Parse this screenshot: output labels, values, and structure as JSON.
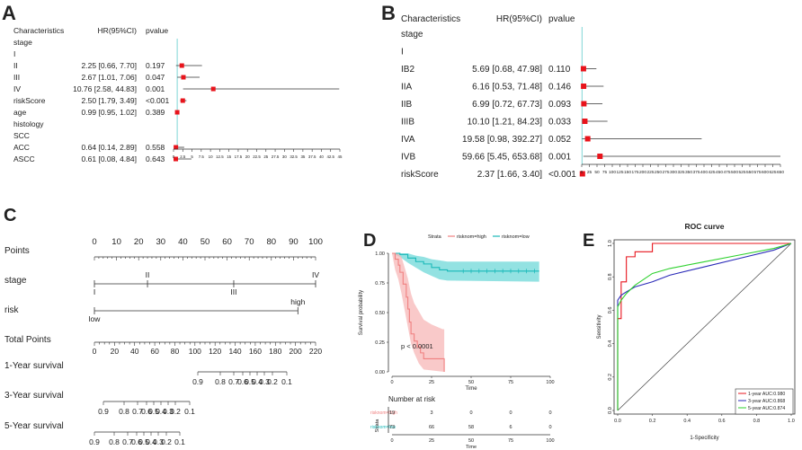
{
  "colors": {
    "marker": "#e8141c",
    "ci": "#333333",
    "refline": "#7fd6d6",
    "high": "#f08080",
    "high_fill": "#f7b7b7",
    "low": "#19b8b8",
    "low_fill": "#6fd8d8",
    "roc1": "#e8141c",
    "roc3": "#2a2ab8",
    "roc5": "#2ed12e"
  },
  "panels": {
    "A": "A",
    "B": "B",
    "C": "C",
    "D": "D",
    "E": "E"
  },
  "headers": {
    "char": "Characteristics",
    "hr": "HR(95%CI)",
    "p": "pvalue"
  },
  "forest_a": {
    "rows": [
      {
        "label": "stage",
        "hr_text": "",
        "p": "",
        "hr": null,
        "lo": null,
        "hi": null
      },
      {
        "label": "I",
        "hr_text": "",
        "p": "",
        "hr": null,
        "lo": null,
        "hi": null
      },
      {
        "label": "II",
        "hr_text": "2.25 [0.66, 7.70]",
        "p": "0.197",
        "hr": 2.25,
        "lo": 0.66,
        "hi": 7.7
      },
      {
        "label": "III",
        "hr_text": "2.67 [1.01, 7.06]",
        "p": "0.047",
        "hr": 2.67,
        "lo": 1.01,
        "hi": 7.06
      },
      {
        "label": "IV",
        "hr_text": "10.76 [2.58, 44.83]",
        "p": "0.001",
        "hr": 10.76,
        "lo": 2.58,
        "hi": 44.83
      },
      {
        "label": "riskScore",
        "hr_text": "2.50 [1.79, 3.49]",
        "p": "<0.001",
        "hr": 2.5,
        "lo": 1.79,
        "hi": 3.49
      },
      {
        "label": "age",
        "hr_text": "0.99 [0.95, 1.02]",
        "p": "0.389",
        "hr": 0.99,
        "lo": 0.95,
        "hi": 1.02
      },
      {
        "label": "histology",
        "hr_text": "",
        "p": "",
        "hr": null,
        "lo": null,
        "hi": null
      },
      {
        "label": "SCC",
        "hr_text": "",
        "p": "",
        "hr": null,
        "lo": null,
        "hi": null
      },
      {
        "label": "ACC",
        "hr_text": "0.64 [0.14, 2.89]",
        "p": "0.558",
        "hr": 0.64,
        "lo": 0.14,
        "hi": 2.89
      },
      {
        "label": "ASCC",
        "hr_text": "0.61 [0.08, 4.84]",
        "p": "0.643",
        "hr": 0.61,
        "lo": 0.08,
        "hi": 4.84
      }
    ],
    "ticks": [
      "0",
      "2.5",
      "5",
      "7.5",
      "10",
      "12.5",
      "15",
      "17.5",
      "20",
      "22.5",
      "25",
      "27.5",
      "30",
      "32.5",
      "35",
      "37.5",
      "40",
      "42.5",
      "45"
    ],
    "xmax": 45
  },
  "forest_b": {
    "rows": [
      {
        "label": "stage",
        "hr_text": "",
        "p": "",
        "hr": null,
        "lo": null,
        "hi": null
      },
      {
        "label": "I",
        "hr_text": "",
        "p": "",
        "hr": null,
        "lo": null,
        "hi": null
      },
      {
        "label": "IB2",
        "hr_text": "5.69 [0.68, 47.98]",
        "p": "0.110",
        "hr": 5.69,
        "lo": 0.68,
        "hi": 47.98
      },
      {
        "label": "IIA",
        "hr_text": "6.16 [0.53, 71.48]",
        "p": "0.146",
        "hr": 6.16,
        "lo": 0.53,
        "hi": 71.48
      },
      {
        "label": "IIB",
        "hr_text": "6.99 [0.72, 67.73]",
        "p": "0.093",
        "hr": 6.99,
        "lo": 0.72,
        "hi": 67.73
      },
      {
        "label": "IIIB",
        "hr_text": "10.10 [1.21, 84.23]",
        "p": "0.033",
        "hr": 10.1,
        "lo": 1.21,
        "hi": 84.23
      },
      {
        "label": "IVA",
        "hr_text": "19.58 [0.98, 392.27]",
        "p": "0.052",
        "hr": 19.58,
        "lo": 0.98,
        "hi": 392.27
      },
      {
        "label": "IVB",
        "hr_text": "59.66 [5.45, 653.68]",
        "p": "0.001",
        "hr": 59.66,
        "lo": 5.45,
        "hi": 653.68
      },
      {
        "label": "riskScore",
        "hr_text": "2.37 [1.66, 3.40]",
        "p": "<0.001",
        "hr": 2.37,
        "lo": 1.66,
        "hi": 3.4
      }
    ],
    "ticks": [
      "0",
      "25",
      "50",
      "75",
      "100",
      "125",
      "150",
      "175",
      "200",
      "225",
      "250",
      "275",
      "300",
      "325",
      "350",
      "375",
      "400",
      "425",
      "450",
      "475",
      "500",
      "525",
      "550",
      "575",
      "600",
      "625",
      "650"
    ],
    "xmax": 650
  },
  "nomogram": {
    "points": {
      "label": "Points",
      "ticks": [
        "0",
        "10",
        "20",
        "30",
        "40",
        "50",
        "60",
        "70",
        "80",
        "90",
        "100"
      ]
    },
    "stage": {
      "label": "stage",
      "items": [
        {
          "t": "I",
          "v": 0,
          "pos": "below"
        },
        {
          "t": "II",
          "v": 24,
          "pos": "above"
        },
        {
          "t": "III",
          "v": 63,
          "pos": "below"
        },
        {
          "t": "IV",
          "v": 100,
          "pos": "above"
        }
      ]
    },
    "risk": {
      "label": "risk",
      "items": [
        {
          "t": "low",
          "v": 0,
          "pos": "below"
        },
        {
          "t": "high",
          "v": 92,
          "pos": "above"
        }
      ]
    },
    "total": {
      "label": "Total Points",
      "ticks": [
        "0",
        "20",
        "40",
        "60",
        "80",
        "100",
        "120",
        "140",
        "160",
        "180",
        "200",
        "220"
      ]
    },
    "y1": {
      "label": "1-Year survival",
      "ticks": [
        "0.9",
        "0.8",
        "0.7",
        "0.6",
        "0.5",
        "0.4",
        "0.3",
        "0.2",
        "0.1"
      ],
      "pos": [
        115,
        140,
        155,
        165,
        173,
        181,
        189,
        198,
        214
      ]
    },
    "y3": {
      "label": "3-Year survival",
      "ticks": [
        "0.9",
        "0.8",
        "0.7",
        "0.6",
        "0.5",
        "0.4",
        "0.3",
        "0.2",
        "0.1"
      ],
      "pos": [
        10,
        33,
        48,
        58,
        66,
        74,
        82,
        90,
        106
      ]
    },
    "y5": {
      "label": "5-Year survival",
      "ticks": [
        "0.9",
        "0.8",
        "0.7",
        "0.6",
        "0.5",
        "0.4",
        "0.3",
        "0.2",
        "0.1"
      ],
      "pos": [
        0,
        22,
        37,
        47,
        55,
        63,
        71,
        80,
        95
      ]
    }
  },
  "km": {
    "legend_title": "Strata",
    "legend_high": "risknom=high",
    "legend_low": "risknom=low",
    "ylabel": "Survival probability",
    "xlabel": "Time",
    "yticks": [
      "0.00",
      "0.25",
      "0.50",
      "0.75",
      "1.00"
    ],
    "xticks": [
      "0",
      "25",
      "50",
      "75",
      "100"
    ],
    "pvalue": "p < 0.0001",
    "risk_title": "Number at risk",
    "risk_axis": "Strata",
    "risk_xlabel": "Time",
    "risk_high": [
      "19",
      "3",
      "0",
      "0",
      "0"
    ],
    "risk_low": [
      "73",
      "66",
      "58",
      "6",
      "0"
    ],
    "high_curve": [
      [
        0,
        1
      ],
      [
        2,
        0.95
      ],
      [
        4,
        0.9
      ],
      [
        5,
        0.84
      ],
      [
        7,
        0.74
      ],
      [
        9,
        0.63
      ],
      [
        10,
        0.53
      ],
      [
        11,
        0.42
      ],
      [
        12,
        0.32
      ],
      [
        14,
        0.26
      ],
      [
        16,
        0.21
      ],
      [
        18,
        0.16
      ],
      [
        20,
        0.11
      ],
      [
        25,
        0.11
      ],
      [
        32,
        0.11
      ],
      [
        33,
        0.0
      ]
    ],
    "high_lo": [
      [
        0,
        1
      ],
      [
        2,
        0.86
      ],
      [
        4,
        0.78
      ],
      [
        6,
        0.66
      ],
      [
        8,
        0.52
      ],
      [
        10,
        0.38
      ],
      [
        12,
        0.24
      ],
      [
        14,
        0.16
      ],
      [
        17,
        0.07
      ],
      [
        20,
        0.02
      ],
      [
        33,
        0.0
      ]
    ],
    "high_hi": [
      [
        0,
        1
      ],
      [
        2,
        1
      ],
      [
        4,
        1
      ],
      [
        6,
        0.97
      ],
      [
        8,
        0.88
      ],
      [
        10,
        0.79
      ],
      [
        12,
        0.66
      ],
      [
        14,
        0.58
      ],
      [
        17,
        0.51
      ],
      [
        20,
        0.44
      ],
      [
        25,
        0.4
      ],
      [
        32,
        0.36
      ],
      [
        33,
        0.36
      ]
    ],
    "low_curve": [
      [
        0,
        1
      ],
      [
        5,
        0.99
      ],
      [
        10,
        0.96
      ],
      [
        15,
        0.93
      ],
      [
        20,
        0.91
      ],
      [
        25,
        0.88
      ],
      [
        30,
        0.86
      ],
      [
        35,
        0.85
      ],
      [
        40,
        0.85
      ],
      [
        93,
        0.85
      ]
    ],
    "low_lo": [
      [
        0,
        1
      ],
      [
        5,
        0.97
      ],
      [
        10,
        0.92
      ],
      [
        15,
        0.88
      ],
      [
        20,
        0.84
      ],
      [
        25,
        0.81
      ],
      [
        30,
        0.78
      ],
      [
        35,
        0.77
      ],
      [
        93,
        0.76
      ]
    ],
    "low_hi": [
      [
        0,
        1
      ],
      [
        5,
        1
      ],
      [
        10,
        1
      ],
      [
        15,
        0.98
      ],
      [
        20,
        0.97
      ],
      [
        25,
        0.95
      ],
      [
        30,
        0.94
      ],
      [
        35,
        0.93
      ],
      [
        93,
        0.93
      ]
    ]
  },
  "chart_data": [
    {
      "type": "forest",
      "title": "A",
      "columns": [
        "Characteristics",
        "HR(95%CI)",
        "pvalue"
      ],
      "xlim": [
        0,
        45
      ],
      "series": [
        {
          "name": "II",
          "hr": 2.25,
          "ci": [
            0.66,
            7.7
          ],
          "p": "0.197"
        },
        {
          "name": "III",
          "hr": 2.67,
          "ci": [
            1.01,
            7.06
          ],
          "p": "0.047"
        },
        {
          "name": "IV",
          "hr": 10.76,
          "ci": [
            2.58,
            44.83
          ],
          "p": "0.001"
        },
        {
          "name": "riskScore",
          "hr": 2.5,
          "ci": [
            1.79,
            3.49
          ],
          "p": "<0.001"
        },
        {
          "name": "age",
          "hr": 0.99,
          "ci": [
            0.95,
            1.02
          ],
          "p": "0.389"
        },
        {
          "name": "ACC",
          "hr": 0.64,
          "ci": [
            0.14,
            2.89
          ],
          "p": "0.558"
        },
        {
          "name": "ASCC",
          "hr": 0.61,
          "ci": [
            0.08,
            4.84
          ],
          "p": "0.643"
        }
      ]
    },
    {
      "type": "forest",
      "title": "B",
      "columns": [
        "Characteristics",
        "HR(95%CI)",
        "pvalue"
      ],
      "xlim": [
        0,
        650
      ],
      "series": [
        {
          "name": "IB2",
          "hr": 5.69,
          "ci": [
            0.68,
            47.98
          ],
          "p": "0.110"
        },
        {
          "name": "IIA",
          "hr": 6.16,
          "ci": [
            0.53,
            71.48
          ],
          "p": "0.146"
        },
        {
          "name": "IIB",
          "hr": 6.99,
          "ci": [
            0.72,
            67.73
          ],
          "p": "0.093"
        },
        {
          "name": "IIIB",
          "hr": 10.1,
          "ci": [
            1.21,
            84.23
          ],
          "p": "0.033"
        },
        {
          "name": "IVA",
          "hr": 19.58,
          "ci": [
            0.98,
            392.27
          ],
          "p": "0.052"
        },
        {
          "name": "IVB",
          "hr": 59.66,
          "ci": [
            5.45,
            653.68
          ],
          "p": "0.001"
        },
        {
          "name": "riskScore",
          "hr": 2.37,
          "ci": [
            1.66,
            3.4
          ],
          "p": "<0.001"
        }
      ]
    },
    {
      "type": "nomogram",
      "title": "C",
      "rows": [
        "Points",
        "stage",
        "risk",
        "Total Points",
        "1-Year survival",
        "3-Year survival",
        "5-Year survival"
      ],
      "points_range": [
        0,
        100
      ],
      "total_range": [
        0,
        220
      ]
    },
    {
      "type": "kaplan-meier",
      "title": "D",
      "xlabel": "Time",
      "ylabel": "Survival probability",
      "xlim": [
        0,
        100
      ],
      "ylim": [
        0,
        1
      ],
      "pvalue": "p < 0.0001",
      "series": [
        {
          "name": "risknom=high"
        },
        {
          "name": "risknom=low"
        }
      ]
    },
    {
      "type": "line",
      "title": "ROC curve",
      "xlabel": "1-Specificity",
      "ylabel": "Sensitivity",
      "xlim": [
        0,
        1
      ],
      "ylim": [
        0,
        1
      ],
      "xticks": [
        "0.0",
        "0.2",
        "0.4",
        "0.6",
        "0.8",
        "1.0"
      ],
      "yticks": [
        "0.0",
        "0.2",
        "0.4",
        "0.6",
        "0.8",
        "1.0"
      ],
      "series": [
        {
          "name": "1-year AUC:0.980",
          "color": "#e8141c",
          "x": [
            0,
            0.0,
            0.02,
            0.02,
            0.05,
            0.05,
            0.1,
            0.1,
            0.2,
            0.2,
            1.0
          ],
          "y": [
            0,
            0.55,
            0.55,
            0.77,
            0.77,
            0.92,
            0.92,
            0.95,
            0.95,
            1.0,
            1.0
          ]
        },
        {
          "name": "3-year AUC:0.868",
          "color": "#2a2ab8",
          "x": [
            0,
            0.0,
            0.02,
            0.05,
            0.1,
            0.2,
            0.3,
            0.5,
            0.7,
            0.9,
            1.0
          ],
          "y": [
            0,
            0.66,
            0.69,
            0.71,
            0.74,
            0.77,
            0.81,
            0.86,
            0.91,
            0.96,
            1.0
          ]
        },
        {
          "name": "5-year AUC:0.874",
          "color": "#2ed12e",
          "x": [
            0,
            0.0,
            0.02,
            0.05,
            0.1,
            0.2,
            0.3,
            0.5,
            0.7,
            0.9,
            1.0
          ],
          "y": [
            0,
            0.62,
            0.66,
            0.7,
            0.75,
            0.82,
            0.85,
            0.89,
            0.93,
            0.97,
            1.0
          ]
        }
      ]
    }
  ]
}
